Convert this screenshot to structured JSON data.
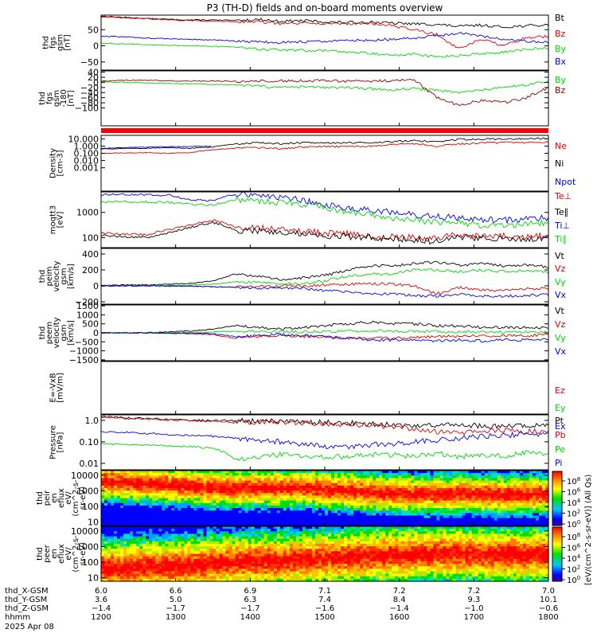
{
  "title": "P3 (TH-D) fields and on-board moments overview",
  "colors": {
    "black": "#000000",
    "red": "#e00000",
    "green": "#00d800",
    "blue": "#0000ee",
    "darkred": "#8b0000"
  },
  "chart_data": [
    {
      "type": "line",
      "ylabel": [
        "thd",
        "fgs",
        "gsm",
        "[nT]"
      ],
      "yscale": "linear",
      "ylim": [
        -75,
        95
      ],
      "yticks": [
        {
          "v": 50,
          "label": "50"
        },
        {
          "v": 0,
          "label": "0"
        },
        {
          "v": -50,
          "label": "−50"
        }
      ],
      "series": [
        {
          "name": "Bt",
          "color": "black",
          "values": [
            92,
            88,
            85,
            82,
            80,
            80,
            78,
            82,
            76,
            78,
            74,
            72,
            74,
            70,
            68,
            66,
            60,
            64,
            58,
            62,
            64
          ]
        },
        {
          "name": "Bz",
          "color": "red",
          "values": [
            90,
            86,
            84,
            80,
            78,
            76,
            75,
            75,
            68,
            70,
            70,
            68,
            70,
            62,
            50,
            35,
            -10,
            20,
            0,
            25,
            30
          ]
        },
        {
          "name": "By",
          "color": "green",
          "values": [
            8,
            6,
            4,
            2,
            0,
            -2,
            -3,
            -10,
            -12,
            -14,
            -15,
            -18,
            -22,
            -30,
            -25,
            -35,
            -30,
            -25,
            -20,
            -10,
            -8
          ]
        },
        {
          "name": "Bx",
          "color": "blue",
          "values": [
            30,
            28,
            24,
            22,
            20,
            18,
            15,
            12,
            10,
            12,
            14,
            16,
            18,
            20,
            25,
            30,
            40,
            30,
            20,
            15,
            10
          ]
        }
      ]
    },
    {
      "type": "line",
      "ylabel": [
        "thd",
        "fgs",
        "gsm",
        "-180",
        "[nT]"
      ],
      "yscale": "linear",
      "ylim": [
        -170,
        45
      ],
      "yticks": [
        {
          "v": 40,
          "label": "40"
        },
        {
          "v": 20,
          "label": "20"
        },
        {
          "v": 0,
          "label": "0"
        },
        {
          "v": -20,
          "label": "−20"
        },
        {
          "v": -40,
          "label": "−40"
        },
        {
          "v": -60,
          "label": "−60"
        },
        {
          "v": -80,
          "label": "−80"
        },
        {
          "v": -100,
          "label": "−100"
        }
      ],
      "series": [
        {
          "name": "By",
          "color": "green",
          "values": [
            2,
            0,
            -2,
            -4,
            -5,
            -8,
            -10,
            -15,
            -20,
            -18,
            -20,
            -22,
            -25,
            -30,
            -25,
            -30,
            -40,
            -30,
            -20,
            -10,
            5
          ]
        },
        {
          "name": "Bz",
          "color": "darkred",
          "values": [
            6,
            8,
            8,
            6,
            6,
            5,
            4,
            5,
            6,
            6,
            6,
            5,
            5,
            6,
            10,
            -60,
            -90,
            -70,
            -80,
            -60,
            -20
          ]
        }
      ]
    },
    {
      "type": "line",
      "ylabel": [
        "Density",
        "[cm-3]"
      ],
      "yscale": "log",
      "ylim": [
        0.0006,
        30000
      ],
      "yticks": [
        {
          "v": 10000,
          "label": "10.000"
        },
        {
          "v": 1000,
          "label": "1.000"
        },
        {
          "v": 100,
          "label": "0.100"
        },
        {
          "v": 10,
          "label": "0.010"
        },
        {
          "v": 1,
          "label": "0.001"
        }
      ],
      "series": [
        {
          "name": "Ne",
          "color": "red",
          "values": [
            100,
            110,
            120,
            100,
            120,
            300,
            500,
            600,
            400,
            700,
            900,
            800,
            1000,
            1500,
            2000,
            1000,
            2000,
            2500,
            3000,
            3000,
            3500
          ]
        },
        {
          "name": "Ni",
          "color": "black",
          "values": [
            400,
            450,
            500,
            600,
            500,
            700,
            2000,
            3000,
            2000,
            3000,
            2500,
            3000,
            3000,
            4000,
            6000,
            4000,
            8000,
            9000,
            10000,
            10000,
            12000
          ]
        },
        {
          "name": "Npot",
          "color": "blue",
          "values": [
            500,
            600,
            700,
            800,
            900,
            1000,
            null,
            null,
            null,
            null,
            null,
            null,
            null,
            null,
            null,
            null,
            null,
            null,
            null,
            null,
            null
          ]
        }
      ]
    },
    {
      "type": "line",
      "ylabel": [
        "moqtt3",
        "[eV]"
      ],
      "yscale": "log",
      "ylim": [
        40,
        6500
      ],
      "yticks": [
        {
          "v": 1000,
          "label": "1000"
        },
        {
          "v": 100,
          "label": "100"
        }
      ],
      "series": [
        {
          "name": "Te⊥",
          "color": "red",
          "values": [
            150,
            140,
            130,
            200,
            300,
            500,
            250,
            250,
            200,
            180,
            150,
            140,
            120,
            110,
            100,
            90,
            130,
            110,
            120,
            110,
            120
          ]
        },
        {
          "name": "Te∥",
          "color": "black",
          "values": [
            120,
            110,
            100,
            150,
            250,
            400,
            200,
            180,
            160,
            150,
            120,
            110,
            100,
            90,
            80,
            70,
            110,
            90,
            100,
            90,
            100
          ]
        },
        {
          "name": "Ti⊥",
          "color": "blue",
          "values": [
            5000,
            5000,
            5000,
            4800,
            3000,
            3000,
            5000,
            5000,
            4000,
            3000,
            2000,
            1500,
            1200,
            1000,
            800,
            700,
            600,
            500,
            500,
            550,
            600
          ]
        },
        {
          "name": "Ti∥",
          "color": "green",
          "values": [
            2500,
            2600,
            2600,
            2500,
            2000,
            2000,
            3000,
            3000,
            2500,
            2000,
            1500,
            1000,
            800,
            600,
            500,
            400,
            400,
            300,
            300,
            350,
            400
          ]
        }
      ]
    },
    {
      "type": "line",
      "ylabel": [
        "thd",
        "peim",
        "velocity",
        "gsm",
        "[km/s]"
      ],
      "yscale": "linear",
      "ylim": [
        -230,
        470
      ],
      "yticks": [
        {
          "v": 400,
          "label": "400"
        },
        {
          "v": 200,
          "label": "200"
        },
        {
          "v": 0,
          "label": "0"
        },
        {
          "v": -200,
          "label": "−200"
        }
      ],
      "series": [
        {
          "name": "Vt",
          "color": "black",
          "values": [
            10,
            10,
            10,
            20,
            30,
            60,
            150,
            120,
            80,
            100,
            130,
            200,
            250,
            250,
            280,
            300,
            260,
            280,
            250,
            260,
            240
          ]
        },
        {
          "name": "Vz",
          "color": "red",
          "values": [
            0,
            0,
            0,
            0,
            -5,
            -10,
            -20,
            -10,
            0,
            0,
            10,
            20,
            30,
            20,
            0,
            -100,
            -20,
            -50,
            -60,
            -40,
            -30
          ]
        },
        {
          "name": "Vy",
          "color": "green",
          "values": [
            0,
            0,
            0,
            5,
            10,
            20,
            50,
            40,
            20,
            30,
            60,
            120,
            150,
            150,
            200,
            200,
            180,
            200,
            180,
            190,
            170
          ]
        },
        {
          "name": "Vx",
          "color": "blue",
          "values": [
            0,
            0,
            0,
            -5,
            -5,
            -10,
            -20,
            -30,
            -20,
            -30,
            -60,
            -80,
            -100,
            -100,
            -120,
            -130,
            -110,
            -130,
            -130,
            -120,
            -110
          ]
        }
      ]
    },
    {
      "type": "line",
      "ylabel": [
        "thd",
        "peem",
        "velocity",
        "gsm",
        "[km/s]"
      ],
      "yscale": "linear",
      "ylim": [
        -1550,
        1550
      ],
      "yticks": [
        {
          "v": 1500,
          "label": "1500"
        },
        {
          "v": 1000,
          "label": "1000"
        },
        {
          "v": 500,
          "label": "500"
        },
        {
          "v": 0,
          "label": "0"
        },
        {
          "v": -500,
          "label": "−500"
        },
        {
          "v": -1000,
          "label": "−1000"
        },
        {
          "v": -1500,
          "label": "−1500"
        }
      ],
      "series": [
        {
          "name": "Vt",
          "color": "black",
          "values": [
            0,
            0,
            0,
            50,
            100,
            200,
            400,
            300,
            200,
            300,
            400,
            500,
            600,
            500,
            500,
            400,
            400,
            300,
            300,
            300,
            250
          ]
        },
        {
          "name": "Vz",
          "color": "red",
          "values": [
            0,
            0,
            0,
            -20,
            -50,
            -100,
            -300,
            -200,
            -150,
            -200,
            -250,
            -300,
            -300,
            -300,
            -250,
            -200,
            -200,
            -150,
            -150,
            -150,
            -120
          ]
        },
        {
          "name": "Vy",
          "color": "green",
          "values": [
            0,
            0,
            0,
            10,
            20,
            40,
            100,
            80,
            50,
            60,
            80,
            100,
            120,
            100,
            80,
            60,
            60,
            50,
            40,
            40,
            30
          ]
        },
        {
          "name": "Vx",
          "color": "blue",
          "values": [
            0,
            0,
            0,
            -10,
            -20,
            -50,
            -200,
            -150,
            -100,
            -150,
            -200,
            -300,
            -400,
            -400,
            -400,
            -450,
            -400,
            -450,
            -400,
            -400,
            -380
          ]
        }
      ]
    },
    {
      "type": "line",
      "ylabel": [
        "E=-VxB",
        "[mV/m]"
      ],
      "yscale": "linear",
      "ylim": [
        -1,
        1
      ],
      "yticks": [],
      "series": [
        {
          "name": "Ez",
          "color": "red",
          "values": []
        },
        {
          "name": "Ey",
          "color": "green",
          "values": []
        },
        {
          "name": "Ex",
          "color": "blue",
          "values": []
        }
      ]
    },
    {
      "type": "line",
      "ylabel": [
        "Pressure",
        "[nPa]"
      ],
      "yscale": "log",
      "ylim": [
        0.005,
        1.8
      ],
      "yticks": [
        {
          "v": 1,
          "label": "1.0"
        },
        {
          "v": 0.1,
          "label": "0.10"
        },
        {
          "v": 0.01,
          "label": "0.01"
        }
      ],
      "series": [
        {
          "name": "Pt",
          "color": "black",
          "values": [
            1.5,
            1.3,
            1.2,
            1.1,
            1.0,
            1.0,
            0.95,
            0.9,
            0.9,
            0.85,
            0.8,
            0.75,
            0.7,
            0.65,
            0.6,
            0.55,
            0.6,
            0.55,
            0.5,
            0.55,
            0.6
          ]
        },
        {
          "name": "Pb",
          "color": "red",
          "values": [
            1.4,
            1.25,
            1.15,
            1.05,
            0.95,
            0.9,
            0.8,
            0.85,
            0.8,
            0.75,
            0.7,
            0.65,
            0.6,
            0.5,
            0.4,
            0.3,
            0.25,
            0.3,
            0.35,
            0.3,
            0.35
          ]
        },
        {
          "name": "Pe",
          "color": "green",
          "values": [
            0.08,
            0.075,
            0.07,
            0.065,
            0.06,
            0.05,
            0.015,
            0.02,
            0.025,
            0.02,
            0.02,
            0.02,
            0.025,
            0.025,
            0.02,
            0.03,
            0.02,
            0.025,
            0.02,
            0.03,
            0.03
          ]
        },
        {
          "name": "Pi",
          "color": "blue",
          "values": [
            0.3,
            0.28,
            0.25,
            0.22,
            0.2,
            0.18,
            0.15,
            0.12,
            0.1,
            0.08,
            0.06,
            0.06,
            0.07,
            0.08,
            0.1,
            0.12,
            0.15,
            0.18,
            0.2,
            0.22,
            0.25
          ]
        }
      ]
    },
    {
      "type": "heatmap",
      "ylabel": [
        "thd",
        "peir",
        "en",
        "eflux",
        "eV/",
        "(cm^2-s-",
        "sr-eV)"
      ],
      "yscale": "log",
      "ylim": [
        6,
        20000
      ],
      "yticks": [
        {
          "v": 10000,
          "label": "10000"
        },
        {
          "v": 1000,
          "label": "1000"
        },
        {
          "v": 100,
          "label": "100"
        },
        {
          "v": 10,
          "label": "10"
        }
      ],
      "peak_energy": [
        4000,
        3500,
        3000,
        2500,
        2000,
        1500,
        1500,
        1500,
        1500,
        1500,
        1200,
        1000,
        800,
        700,
        600,
        600,
        700,
        600,
        600,
        600,
        600
      ]
    },
    {
      "type": "heatmap",
      "ylabel": [
        "thd",
        "peer",
        "en",
        "eflux",
        "eV/",
        "(cm^2-s-",
        "sr-eV)"
      ],
      "yscale": "log",
      "ylim": [
        6,
        20000
      ],
      "yticks": [
        {
          "v": 10000,
          "label": "10000"
        },
        {
          "v": 1000,
          "label": "1000"
        },
        {
          "v": 100,
          "label": "100"
        },
        {
          "v": 10,
          "label": "10"
        }
      ],
      "peak_energy": [
        40,
        40,
        50,
        50,
        60,
        80,
        100,
        120,
        120,
        150,
        180,
        200,
        250,
        300,
        300,
        350,
        350,
        300,
        300,
        300,
        300
      ]
    }
  ],
  "right_labels": [
    [
      "Bt",
      "Bz",
      "By",
      "Bx"
    ],
    [
      "By",
      "Bz"
    ],
    [
      "Ne",
      "Ni",
      "Npot"
    ],
    [
      "Te⊥",
      "Te∥",
      "Ti⊥",
      "Ti∥"
    ],
    [
      "Vt",
      "Vz",
      "Vy",
      "Vx"
    ],
    [
      "Vt",
      "Vz",
      "Vy",
      "Vx"
    ],
    [
      "Ez",
      "Ey",
      "Ex"
    ],
    [
      "Pt",
      "Pb",
      "Pe",
      "Pi"
    ]
  ],
  "colorbar": {
    "ticks": [
      "10^8",
      "10^6",
      "10^4",
      "10^2",
      "10^0"
    ],
    "ticks2": [
      "10^8",
      "10^6",
      "10^4",
      "10^2",
      "10^0"
    ],
    "label": "[eV/(cm^2-s-sr-eV)] (All Qs)"
  },
  "time_axis": {
    "rows": [
      {
        "label": "thd_X-GSM",
        "values": [
          "6.0",
          "6.6",
          "6.9",
          "7.1",
          "7.2",
          "7.2",
          "7.0"
        ]
      },
      {
        "label": "thd_Y-GSM",
        "values": [
          "3.6",
          "5.0",
          "6.3",
          "7.4",
          "8.4",
          "9.3",
          "10.1"
        ]
      },
      {
        "label": "thd_Z-GSM",
        "values": [
          "−1.4",
          "−1.7",
          "−1.7",
          "−1.6",
          "−1.4",
          "−1.0",
          "−0.6"
        ]
      },
      {
        "label": "hhmm",
        "values": [
          "1200",
          "1300",
          "1400",
          "1500",
          "1600",
          "1700",
          "1800"
        ]
      }
    ],
    "date": "2025 Apr 08"
  }
}
